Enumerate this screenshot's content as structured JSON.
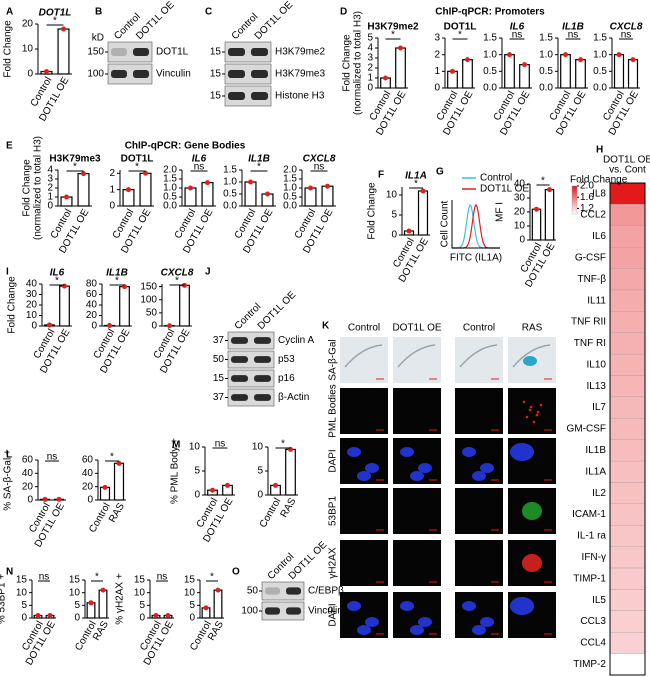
{
  "letters": [
    "A",
    "B",
    "C",
    "D",
    "E",
    "F",
    "G",
    "H",
    "I",
    "J",
    "K",
    "L",
    "M",
    "N",
    "O"
  ],
  "titles": [
    "ChIP-qPCR: Promoters",
    "ChIP-qPCR: Gene Bodies"
  ],
  "charts": [
    {
      "type": "bar",
      "title": "DOT1L",
      "title_italic": true,
      "ylabel": [
        "Fold Change"
      ],
      "categories": [
        "Control",
        "DOT1L OE"
      ],
      "values": [
        1,
        18
      ],
      "color": "#e0201c",
      "ylim": [
        0,
        20
      ],
      "yticks": [
        0,
        10,
        20
      ],
      "annotation": "*"
    },
    {
      "type": "bar",
      "title": "H3K79me2",
      "ylabel": [
        "Fold Change",
        "(normalized to total H3)"
      ],
      "categories": [
        "Control",
        "DOT1L OE"
      ],
      "values": [
        1,
        4
      ],
      "color": "#e0201c",
      "ylim": [
        0,
        5
      ],
      "yticks": [
        0,
        1,
        2,
        3,
        4,
        5
      ],
      "annotation": "*"
    },
    {
      "type": "bar",
      "title": "DOT1L",
      "categories": [
        "Control",
        "DOT1L OE"
      ],
      "values": [
        1,
        1.7
      ],
      "color": "#e0201c",
      "ylim": [
        0,
        3
      ],
      "yticks": [
        0,
        1,
        2,
        3
      ],
      "annotation": "*"
    },
    {
      "type": "bar",
      "title": "IL6",
      "title_italic": true,
      "categories": [
        "Control",
        "DOT1L OE"
      ],
      "values": [
        1,
        0.7
      ],
      "color": "#e0201c",
      "ylim": [
        0,
        1.5
      ],
      "yticks": [
        {
          "value": 0,
          "label": "0.0"
        },
        {
          "value": 0.5,
          "label": "0.5"
        },
        {
          "value": 1,
          "label": "1.0"
        },
        {
          "value": 1.5,
          "label": "1.5"
        }
      ],
      "annotation": "ns"
    },
    {
      "type": "bar",
      "title": "IL1B",
      "title_italic": true,
      "categories": [
        "Control",
        "DOT1L OE"
      ],
      "values": [
        1,
        0.85
      ],
      "color": "#e0201c",
      "ylim": [
        0,
        1.5
      ],
      "yticks": [
        {
          "value": 0,
          "label": "0.0"
        },
        {
          "value": 0.5,
          "label": "0.5"
        },
        {
          "value": 1,
          "label": "1.0"
        },
        {
          "value": 1.5,
          "label": "1.5"
        }
      ],
      "annotation": "ns"
    },
    {
      "type": "bar",
      "title": "CXCL8",
      "title_italic": true,
      "categories": [
        "Control",
        "DOT1L OE"
      ],
      "values": [
        1,
        0.85
      ],
      "color": "#e0201c",
      "ylim": [
        0,
        1.5
      ],
      "yticks": [
        {
          "value": 0,
          "label": "0.0"
        },
        {
          "value": 0.5,
          "label": "0.5"
        },
        {
          "value": 1,
          "label": "1.0"
        },
        {
          "value": 1.5,
          "label": "1.5"
        }
      ],
      "annotation": "ns"
    },
    {
      "type": "bar",
      "title": "H3K79me3",
      "ylabel": [
        "Fold Change",
        "(normalized to total H3)"
      ],
      "categories": [
        "Control",
        "DOT1L OE"
      ],
      "values": [
        1,
        3.6
      ],
      "color": "#e0201c",
      "ylim": [
        0,
        4
      ],
      "yticks": [
        0,
        1,
        2,
        3,
        4
      ],
      "annotation": "*"
    },
    {
      "type": "bar",
      "title": "DOT1L",
      "categories": [
        "Control",
        "DOT1L OE"
      ],
      "values": [
        1,
        2
      ],
      "color": "#e0201c",
      "ylim": [
        0,
        2.2
      ],
      "yticks": [
        0,
        1,
        2
      ],
      "annotation": "*"
    },
    {
      "type": "bar",
      "title": "IL6",
      "title_italic": true,
      "categories": [
        "Control",
        "DOT1L OE"
      ],
      "values": [
        1,
        1.3
      ],
      "color": "#e0201c",
      "ylim": [
        0,
        2
      ],
      "yticks": [
        {
          "value": 0,
          "label": "0.0"
        },
        {
          "value": 0.5,
          "label": "0.5"
        },
        {
          "value": 1,
          "label": "1.0"
        },
        {
          "value": 1.5,
          "label": "1.5"
        },
        {
          "value": 2,
          "label": "2.0"
        }
      ],
      "annotation": "ns"
    },
    {
      "type": "bar",
      "title": "IL1B",
      "title_italic": true,
      "categories": [
        "Control",
        "DOT1L OE"
      ],
      "values": [
        1,
        0.5
      ],
      "color": "#e0201c",
      "ylim": [
        0,
        1.5
      ],
      "yticks": [
        {
          "value": 0,
          "label": "0.0"
        },
        {
          "value": 0.5,
          "label": "0.5"
        },
        {
          "value": 1,
          "label": "1.0"
        },
        {
          "value": 1.5,
          "label": "1.5"
        }
      ],
      "annotation": "*"
    },
    {
      "type": "bar",
      "title": "CXCL8",
      "title_italic": true,
      "categories": [
        "Control",
        "DOT1L OE"
      ],
      "values": [
        1,
        1.1
      ],
      "color": "#e0201c",
      "ylim": [
        0,
        2
      ],
      "yticks": [
        {
          "value": 0,
          "label": "0.0"
        },
        {
          "value": 0.5,
          "label": "0.5"
        },
        {
          "value": 1,
          "label": "1.0"
        },
        {
          "value": 1.5,
          "label": "1.5"
        },
        {
          "value": 2,
          "label": "2.0"
        }
      ],
      "annotation": "ns"
    },
    {
      "type": "bar",
      "title": "IL1A",
      "title_italic": true,
      "ylabel": [
        "Fold Change"
      ],
      "categories": [
        "Control",
        "DOT1L OE"
      ],
      "values": [
        1,
        11
      ],
      "color": "#e0201c",
      "ylim": [
        0,
        12
      ],
      "yticks": [
        0,
        5,
        10
      ],
      "annotation": "*"
    },
    {
      "type": "bar",
      "ylabel": [
        "MF I"
      ],
      "categories": [
        "Control",
        "DOT1L OE"
      ],
      "values": [
        22,
        36
      ],
      "color": "#e0201c",
      "ylim": [
        0,
        40
      ],
      "yticks": [
        0,
        10,
        20,
        30,
        40
      ],
      "annotation": "*"
    },
    {
      "type": "bar",
      "title": "IL6",
      "title_italic": true,
      "ylabel": [
        "Fold Change"
      ],
      "categories": [
        "Control",
        "DOT1L OE"
      ],
      "values": [
        1,
        38
      ],
      "color": "#e0201c",
      "ylim": [
        0,
        40
      ],
      "yticks": [
        0,
        10,
        20,
        30,
        40
      ],
      "annotation": "*"
    },
    {
      "type": "bar",
      "title": "IL1B",
      "title_italic": true,
      "categories": [
        "Control",
        "DOT1L OE"
      ],
      "values": [
        1,
        75
      ],
      "color": "#e0201c",
      "ylim": [
        0,
        80
      ],
      "yticks": [
        0,
        20,
        40,
        60,
        80
      ],
      "annotation": "*"
    },
    {
      "type": "bar",
      "title": "CXCL8",
      "title_italic": true,
      "categories": [
        "Control",
        "DOT1L OE"
      ],
      "values": [
        1,
        155
      ],
      "color": "#e0201c",
      "ylim": [
        0,
        160
      ],
      "yticks": [
        0,
        50,
        100,
        150
      ],
      "annotation": "*"
    },
    {
      "type": "bar",
      "ylabel": [
        "% SA-β-Gal +"
      ],
      "categories": [
        "Control",
        "DOT1L OE"
      ],
      "values": [
        1,
        1
      ],
      "color": "#e0201c",
      "ylim": [
        0,
        60
      ],
      "yticks": [
        0,
        20,
        40,
        60
      ],
      "annotation": "ns"
    },
    {
      "type": "bar",
      "categories": [
        "Control",
        "RAS"
      ],
      "values": [
        19,
        55
      ],
      "color": "#e0201c",
      "ylim": [
        0,
        60
      ],
      "yticks": [
        0,
        20,
        40,
        60
      ],
      "annotation": "*"
    },
    {
      "type": "bar",
      "ylabel": [
        "% PML Body +"
      ],
      "categories": [
        "Control",
        "DOT1L OE"
      ],
      "values": [
        1,
        2
      ],
      "color": "#e0201c",
      "ylim": [
        0,
        10
      ],
      "yticks": [
        0,
        5,
        10
      ],
      "annotation": "ns"
    },
    {
      "type": "bar",
      "categories": [
        "Control",
        "RAS"
      ],
      "values": [
        2,
        9.5
      ],
      "color": "#e0201c",
      "ylim": [
        0,
        10
      ],
      "yticks": [
        0,
        5,
        10
      ],
      "annotation": "*"
    },
    {
      "type": "bar",
      "ylabel": [
        "% 53BP1 +"
      ],
      "categories": [
        "Control",
        "DOT1L OE"
      ],
      "values": [
        1,
        1
      ],
      "color": "#e0201c",
      "ylim": [
        0,
        15
      ],
      "yticks": [
        0,
        5,
        10,
        15
      ],
      "annotation": "ns"
    },
    {
      "type": "bar",
      "categories": [
        "Control",
        "RAS"
      ],
      "values": [
        6,
        11
      ],
      "color": "#e0201c",
      "ylim": [
        0,
        15
      ],
      "yticks": [
        0,
        5,
        10,
        15
      ],
      "annotation": "*"
    },
    {
      "type": "bar",
      "ylabel": [
        "% γH2AX +"
      ],
      "categories": [
        "Control",
        "DOT1L OE"
      ],
      "values": [
        1,
        1
      ],
      "color": "#e0201c",
      "ylim": [
        0,
        15
      ],
      "yticks": [
        0,
        5,
        10,
        15
      ],
      "annotation": "ns"
    },
    {
      "type": "bar",
      "categories": [
        "Control",
        "RAS"
      ],
      "values": [
        4,
        11
      ],
      "color": "#e0201c",
      "ylim": [
        0,
        15
      ],
      "yticks": [
        0,
        5,
        10,
        15
      ],
      "annotation": "*"
    }
  ],
  "blots": [
    {
      "lanes": [
        "Control",
        "DOT1L OE"
      ],
      "unit": "kD",
      "markers": [
        "150",
        "100"
      ],
      "bands": [
        "DOT1L",
        "Vinculin"
      ]
    },
    {
      "lanes": [
        "Control",
        "DOT1L OE"
      ],
      "markers": [
        "15",
        "15",
        "15"
      ],
      "bands": [
        "H3K79me2",
        "H3K79me3",
        "Histone H3"
      ]
    },
    {
      "lanes": [
        "Control",
        "DOT1L OE"
      ],
      "markers": [
        "37",
        "50",
        "15",
        "37"
      ],
      "bands": [
        "Cyclin A",
        "p53",
        "p16",
        "β-Actin"
      ]
    },
    {
      "lanes": [
        "Control",
        "DOT1L OE"
      ],
      "markers": [
        "50",
        "100"
      ],
      "bands": [
        "C/EBPβ",
        "Vinculin"
      ]
    }
  ],
  "flow": {
    "series": [
      {
        "name": "Control",
        "color": "#3fc1d9"
      },
      {
        "name": "DOT1L OE",
        "color": "#e0201c"
      }
    ],
    "xlabel": "FITC (IL1A)",
    "ylabel": "Cell Count"
  },
  "heatmap": {
    "header": [
      "DOT1L OE",
      "vs. Cont"
    ],
    "legend_title": "Fold Change",
    "legend_ticks": [
      {
        "value": 2,
        "label": "2.0"
      },
      {
        "value": 1.6,
        "label": "1.6"
      },
      {
        "value": 1.2,
        "label": "1.2"
      }
    ],
    "clim": [
      1,
      2
    ],
    "color_low": "#ffffff",
    "color_high": "#e3191c",
    "rows": [
      "IL8",
      "CCL2",
      "IL6",
      "G-CSF",
      "TNF-β",
      "IL11",
      "TNF RII",
      "TNF RI",
      "IL10",
      "IL13",
      "IL7",
      "GM-CSF",
      "IL1B",
      "IL1A",
      "IL2",
      "ICAM-1",
      "IL-1 ra",
      "IFN-γ",
      "TIMP-1",
      "IL5",
      "CCL3",
      "CCL4",
      "TIMP-2"
    ],
    "values": [
      2.0,
      1.45,
      1.4,
      1.4,
      1.38,
      1.36,
      1.35,
      1.34,
      1.33,
      1.32,
      1.31,
      1.3,
      1.29,
      1.28,
      1.27,
      1.26,
      1.25,
      1.24,
      1.23,
      1.22,
      1.21,
      1.2,
      1.0
    ]
  },
  "micrographs": {
    "columns": [
      "Control",
      "DOT1L OE",
      "Control",
      "RAS"
    ],
    "rows": [
      "SA-β-Gal",
      "PML Bodies",
      "DAPI",
      "53BP1",
      "γH2AX",
      "DAPI"
    ]
  }
}
